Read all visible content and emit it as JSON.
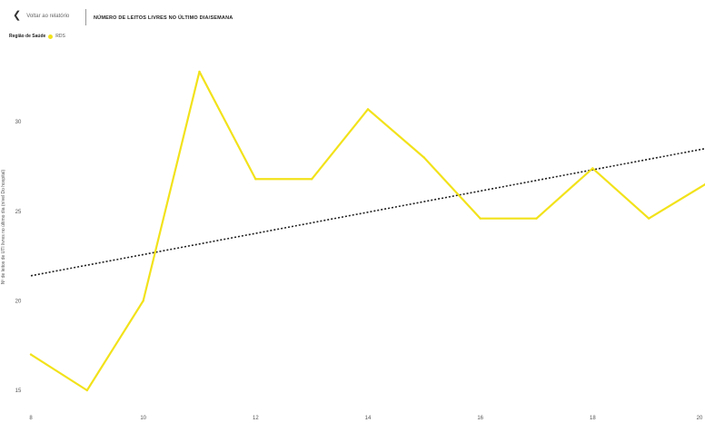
{
  "header": {
    "back_label": "Voltar ao relatório",
    "title": "NÚMERO DE LEITOS LIVRES NO ÚLTIMO DIA/SEMANA"
  },
  "legend": {
    "title": "Região de Saúde",
    "items": [
      {
        "label": "RDS",
        "color": "#f2e21a"
      }
    ]
  },
  "chart_data": {
    "type": "line",
    "xlabel": "",
    "ylabel": "Nº de leitos de UTI livres no último dia (nível Do hospital)",
    "x_ticks": [
      8,
      10,
      12,
      14,
      16,
      18,
      20
    ],
    "y_ticks": [
      15,
      20,
      25,
      30
    ],
    "xlim": [
      8,
      20
    ],
    "ylim": [
      15,
      33
    ],
    "grid": false,
    "legend_position": "top-left",
    "series": [
      {
        "name": "RDS",
        "color": "#f2e21a",
        "x": [
          8,
          9,
          10,
          11,
          12,
          13,
          14,
          15,
          16,
          17,
          18,
          19,
          20
        ],
        "y": [
          17,
          15,
          20,
          32.8,
          26.8,
          26.8,
          30.7,
          28,
          24.6,
          24.6,
          27.4,
          24.6,
          26.5
        ]
      }
    ],
    "trendline": {
      "style": "dotted",
      "color": "#222222",
      "x": [
        8,
        20
      ],
      "y": [
        21.4,
        28.5
      ]
    }
  }
}
